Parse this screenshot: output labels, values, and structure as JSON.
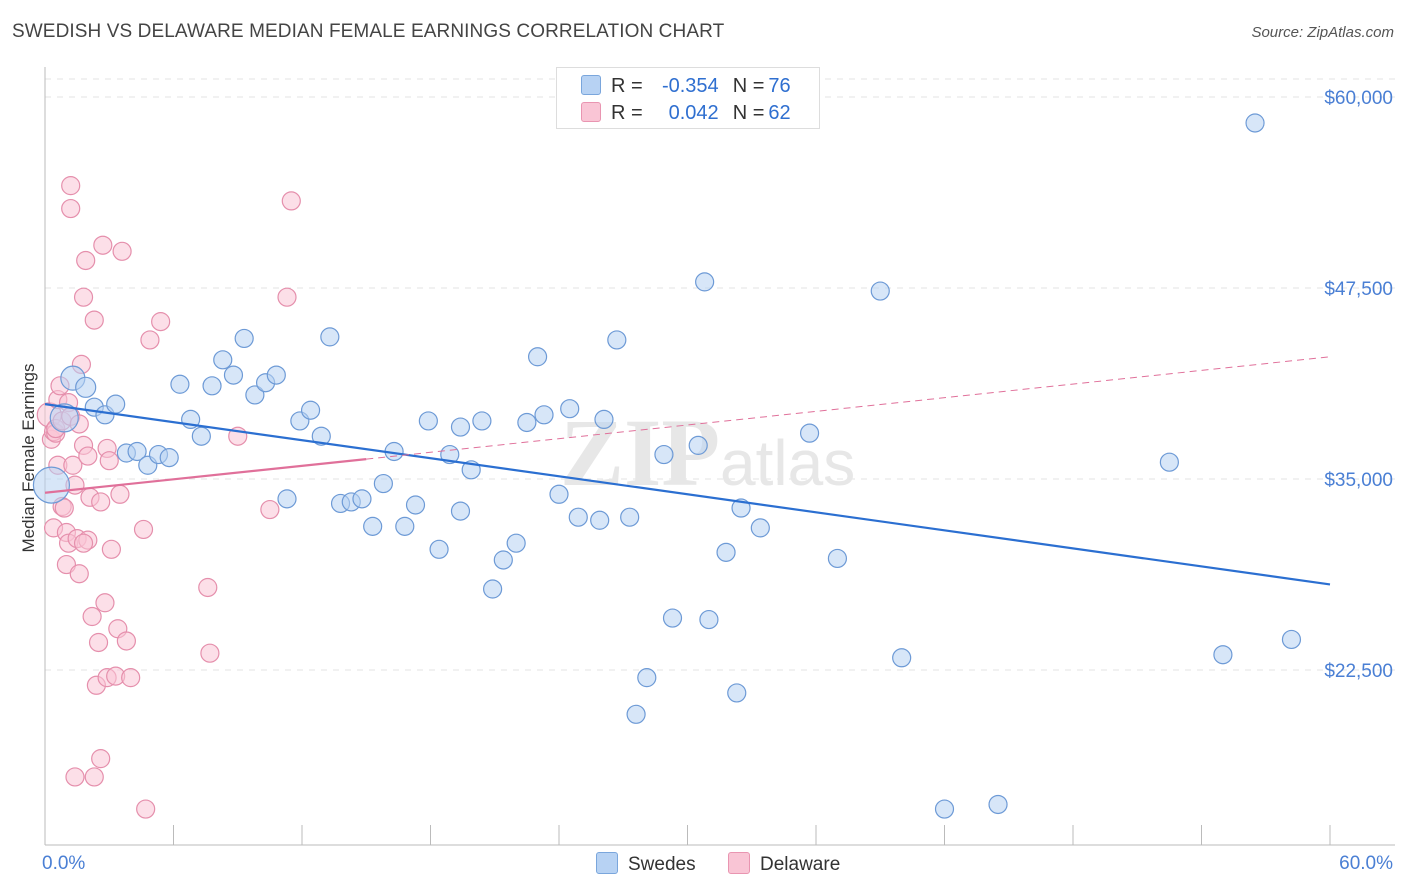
{
  "title": "SWEDISH VS DELAWARE MEDIAN FEMALE EARNINGS CORRELATION CHART",
  "source": "Source: ZipAtlas.com",
  "watermark": "ZIPatlas",
  "legend": {
    "r_label": "R =",
    "n_label": "N =",
    "swedes": {
      "r": "-0.354",
      "n": "76"
    },
    "delaware": {
      "r": "0.042",
      "n": "62"
    }
  },
  "colors": {
    "swedes_fill": "#b7d2f3",
    "swedes_stroke": "#6d9ad6",
    "swedes_line": "#2b6fd1",
    "delaware_fill": "#f9c5d5",
    "delaware_stroke": "#e58fac",
    "delaware_line": "#e0709a",
    "axis_text": "#4a7fd4",
    "grid": "#e3e3e3"
  },
  "chart_data": {
    "type": "scatter",
    "title": "SWEDISH VS DELAWARE MEDIAN FEMALE EARNINGS CORRELATION CHART",
    "xlabel": "",
    "ylabel": "Median Female Earnings",
    "xlim": [
      0,
      60
    ],
    "ylim": [
      12000,
      62000
    ],
    "x_tick_labels": [
      "0.0%",
      "60.0%"
    ],
    "y_ticks": [
      22500,
      35000,
      47500,
      60000
    ],
    "y_tick_labels": [
      "$22,500",
      "$35,000",
      "$47,500",
      "$60,000"
    ],
    "legend_position": "top-center",
    "series": [
      {
        "name": "Swedes",
        "r": -0.354,
        "n": 76,
        "trend": {
          "x": [
            0,
            60
          ],
          "y": [
            39900,
            28100
          ],
          "style": "solid"
        },
        "points": [
          {
            "x": 0.3,
            "y": 34600,
            "s": 18
          },
          {
            "x": 0.9,
            "y": 39000,
            "s": 14
          },
          {
            "x": 1.3,
            "y": 41600,
            "s": 12
          },
          {
            "x": 1.9,
            "y": 41000,
            "s": 10
          },
          {
            "x": 2.3,
            "y": 39700,
            "s": 9
          },
          {
            "x": 2.8,
            "y": 39200,
            "s": 9
          },
          {
            "x": 3.3,
            "y": 39900,
            "s": 9
          },
          {
            "x": 3.8,
            "y": 36700,
            "s": 9
          },
          {
            "x": 4.3,
            "y": 36800,
            "s": 9
          },
          {
            "x": 4.8,
            "y": 35900,
            "s": 9
          },
          {
            "x": 5.3,
            "y": 36600,
            "s": 9
          },
          {
            "x": 5.8,
            "y": 36400,
            "s": 9
          },
          {
            "x": 6.3,
            "y": 41200,
            "s": 9
          },
          {
            "x": 6.8,
            "y": 38900,
            "s": 9
          },
          {
            "x": 7.3,
            "y": 37800,
            "s": 9
          },
          {
            "x": 7.8,
            "y": 41100,
            "s": 9
          },
          {
            "x": 8.3,
            "y": 42800,
            "s": 9
          },
          {
            "x": 8.8,
            "y": 41800,
            "s": 9
          },
          {
            "x": 9.3,
            "y": 44200,
            "s": 9
          },
          {
            "x": 9.8,
            "y": 40500,
            "s": 9
          },
          {
            "x": 10.3,
            "y": 41300,
            "s": 9
          },
          {
            "x": 10.8,
            "y": 41800,
            "s": 9
          },
          {
            "x": 11.3,
            "y": 33700,
            "s": 9
          },
          {
            "x": 11.9,
            "y": 38800,
            "s": 9
          },
          {
            "x": 12.4,
            "y": 39500,
            "s": 9
          },
          {
            "x": 12.9,
            "y": 37800,
            "s": 9
          },
          {
            "x": 13.3,
            "y": 44300,
            "s": 9
          },
          {
            "x": 13.8,
            "y": 33400,
            "s": 9
          },
          {
            "x": 14.3,
            "y": 33500,
            "s": 9
          },
          {
            "x": 14.8,
            "y": 33700,
            "s": 9
          },
          {
            "x": 15.3,
            "y": 31900,
            "s": 9
          },
          {
            "x": 15.8,
            "y": 34700,
            "s": 9
          },
          {
            "x": 16.3,
            "y": 36800,
            "s": 9
          },
          {
            "x": 16.8,
            "y": 31900,
            "s": 9
          },
          {
            "x": 17.3,
            "y": 33300,
            "s": 9
          },
          {
            "x": 17.9,
            "y": 38800,
            "s": 9
          },
          {
            "x": 18.4,
            "y": 30400,
            "s": 9
          },
          {
            "x": 18.9,
            "y": 36600,
            "s": 9
          },
          {
            "x": 19.4,
            "y": 38400,
            "s": 9
          },
          {
            "x": 19.9,
            "y": 35600,
            "s": 9
          },
          {
            "x": 20.4,
            "y": 38800,
            "s": 9
          },
          {
            "x": 20.9,
            "y": 27800,
            "s": 9
          },
          {
            "x": 21.4,
            "y": 29700,
            "s": 9
          },
          {
            "x": 22.0,
            "y": 30800,
            "s": 9
          },
          {
            "x": 22.5,
            "y": 38700,
            "s": 9
          },
          {
            "x": 23.0,
            "y": 43000,
            "s": 9
          },
          {
            "x": 23.3,
            "y": 39200,
            "s": 9
          },
          {
            "x": 24.0,
            "y": 34000,
            "s": 9
          },
          {
            "x": 24.5,
            "y": 39600,
            "s": 9
          },
          {
            "x": 24.9,
            "y": 32500,
            "s": 9
          },
          {
            "x": 25.9,
            "y": 32300,
            "s": 9
          },
          {
            "x": 26.1,
            "y": 38900,
            "s": 9
          },
          {
            "x": 26.7,
            "y": 44100,
            "s": 9
          },
          {
            "x": 27.3,
            "y": 32500,
            "s": 9
          },
          {
            "x": 28.1,
            "y": 22000,
            "s": 9
          },
          {
            "x": 27.6,
            "y": 19600,
            "s": 9
          },
          {
            "x": 28.9,
            "y": 36600,
            "s": 9
          },
          {
            "x": 29.3,
            "y": 25900,
            "s": 9
          },
          {
            "x": 30.5,
            "y": 37200,
            "s": 9
          },
          {
            "x": 30.8,
            "y": 47900,
            "s": 9
          },
          {
            "x": 31.0,
            "y": 25800,
            "s": 9
          },
          {
            "x": 31.8,
            "y": 30200,
            "s": 9
          },
          {
            "x": 32.3,
            "y": 21000,
            "s": 9
          },
          {
            "x": 32.5,
            "y": 33100,
            "s": 9
          },
          {
            "x": 33.4,
            "y": 31800,
            "s": 9
          },
          {
            "x": 35.7,
            "y": 38000,
            "s": 9
          },
          {
            "x": 37.0,
            "y": 29800,
            "s": 9
          },
          {
            "x": 39.0,
            "y": 47300,
            "s": 9
          },
          {
            "x": 40.0,
            "y": 23300,
            "s": 9
          },
          {
            "x": 42.0,
            "y": 13400,
            "s": 9
          },
          {
            "x": 44.5,
            "y": 13700,
            "s": 9
          },
          {
            "x": 52.5,
            "y": 36100,
            "s": 9
          },
          {
            "x": 55.0,
            "y": 23500,
            "s": 9
          },
          {
            "x": 56.5,
            "y": 58300,
            "s": 9
          },
          {
            "x": 58.2,
            "y": 24500,
            "s": 9
          },
          {
            "x": 19.4,
            "y": 32900,
            "s": 9
          }
        ]
      },
      {
        "name": "Delaware",
        "r": 0.042,
        "n": 62,
        "trend_solid": {
          "x": [
            0,
            15
          ],
          "y": [
            34100,
            36300
          ]
        },
        "trend_dashed": {
          "x": [
            15,
            60
          ],
          "y": [
            36300,
            43000
          ]
        },
        "points": [
          {
            "x": 0.2,
            "y": 39200,
            "s": 12
          },
          {
            "x": 0.3,
            "y": 37600,
            "s": 9
          },
          {
            "x": 0.4,
            "y": 31800,
            "s": 9
          },
          {
            "x": 0.4,
            "y": 38100,
            "s": 9
          },
          {
            "x": 0.5,
            "y": 38000,
            "s": 9
          },
          {
            "x": 0.5,
            "y": 38300,
            "s": 9
          },
          {
            "x": 0.6,
            "y": 40200,
            "s": 9
          },
          {
            "x": 0.6,
            "y": 35900,
            "s": 9
          },
          {
            "x": 0.7,
            "y": 41100,
            "s": 9
          },
          {
            "x": 0.8,
            "y": 33200,
            "s": 9
          },
          {
            "x": 0.8,
            "y": 38800,
            "s": 9
          },
          {
            "x": 0.9,
            "y": 33100,
            "s": 9
          },
          {
            "x": 1.0,
            "y": 31500,
            "s": 9
          },
          {
            "x": 1.0,
            "y": 29400,
            "s": 9
          },
          {
            "x": 1.1,
            "y": 30800,
            "s": 9
          },
          {
            "x": 1.1,
            "y": 40000,
            "s": 9
          },
          {
            "x": 1.2,
            "y": 52700,
            "s": 9
          },
          {
            "x": 1.2,
            "y": 54200,
            "s": 9
          },
          {
            "x": 1.2,
            "y": 39100,
            "s": 9
          },
          {
            "x": 1.3,
            "y": 35900,
            "s": 9
          },
          {
            "x": 1.4,
            "y": 34600,
            "s": 9
          },
          {
            "x": 1.5,
            "y": 31100,
            "s": 9
          },
          {
            "x": 1.6,
            "y": 38600,
            "s": 9
          },
          {
            "x": 1.6,
            "y": 28800,
            "s": 9
          },
          {
            "x": 1.7,
            "y": 42500,
            "s": 9
          },
          {
            "x": 1.8,
            "y": 37200,
            "s": 9
          },
          {
            "x": 1.8,
            "y": 46900,
            "s": 9
          },
          {
            "x": 1.9,
            "y": 49300,
            "s": 9
          },
          {
            "x": 2.0,
            "y": 36500,
            "s": 9
          },
          {
            "x": 2.0,
            "y": 31000,
            "s": 9
          },
          {
            "x": 2.1,
            "y": 33800,
            "s": 9
          },
          {
            "x": 2.2,
            "y": 26000,
            "s": 9
          },
          {
            "x": 2.3,
            "y": 45400,
            "s": 9
          },
          {
            "x": 2.4,
            "y": 21500,
            "s": 9
          },
          {
            "x": 2.5,
            "y": 24300,
            "s": 9
          },
          {
            "x": 2.6,
            "y": 33500,
            "s": 9
          },
          {
            "x": 2.6,
            "y": 16700,
            "s": 9
          },
          {
            "x": 2.7,
            "y": 50300,
            "s": 9
          },
          {
            "x": 2.8,
            "y": 26900,
            "s": 9
          },
          {
            "x": 2.9,
            "y": 22000,
            "s": 9
          },
          {
            "x": 2.9,
            "y": 37000,
            "s": 9
          },
          {
            "x": 3.0,
            "y": 36200,
            "s": 9
          },
          {
            "x": 3.1,
            "y": 30400,
            "s": 9
          },
          {
            "x": 3.3,
            "y": 22100,
            "s": 9
          },
          {
            "x": 3.4,
            "y": 25200,
            "s": 9
          },
          {
            "x": 3.6,
            "y": 49900,
            "s": 9
          },
          {
            "x": 3.5,
            "y": 34000,
            "s": 9
          },
          {
            "x": 3.8,
            "y": 24400,
            "s": 9
          },
          {
            "x": 4.0,
            "y": 22000,
            "s": 9
          },
          {
            "x": 4.6,
            "y": 31700,
            "s": 9
          },
          {
            "x": 4.7,
            "y": 13400,
            "s": 9
          },
          {
            "x": 4.9,
            "y": 44100,
            "s": 9
          },
          {
            "x": 5.4,
            "y": 45300,
            "s": 9
          },
          {
            "x": 7.6,
            "y": 27900,
            "s": 9
          },
          {
            "x": 7.7,
            "y": 23600,
            "s": 9
          },
          {
            "x": 9.0,
            "y": 37800,
            "s": 9
          },
          {
            "x": 10.5,
            "y": 33000,
            "s": 9
          },
          {
            "x": 11.3,
            "y": 46900,
            "s": 9
          },
          {
            "x": 11.5,
            "y": 53200,
            "s": 9
          },
          {
            "x": 1.4,
            "y": 15500,
            "s": 9
          },
          {
            "x": 2.3,
            "y": 15500,
            "s": 9
          },
          {
            "x": 1.8,
            "y": 30800,
            "s": 9
          }
        ]
      }
    ]
  }
}
